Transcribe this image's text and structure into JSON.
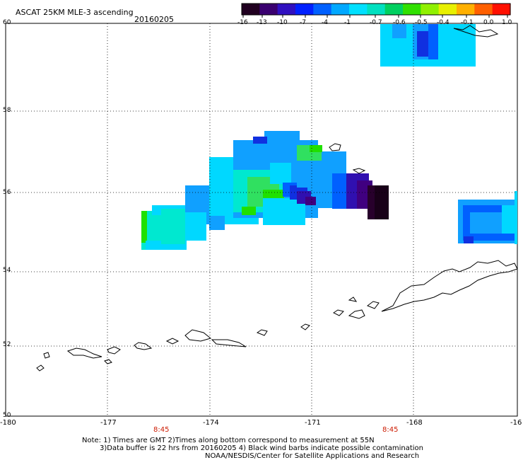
{
  "header": {
    "title": "ASCAT 25KM MLE-3 ascending",
    "date": "20160205"
  },
  "colorbar": {
    "labels": [
      "-16",
      "-13",
      "-10",
      "-7",
      "-4",
      "-1",
      "-0.7",
      "-0.6",
      "-0.5",
      "-0.4",
      "-0.1",
      "0.0",
      "1.0"
    ],
    "colors": [
      "#200020",
      "#3a0070",
      "#3010c0",
      "#0020ff",
      "#0060ff",
      "#00a8ff",
      "#00e0ff",
      "#00e0c0",
      "#00d060",
      "#30e000",
      "#90f000",
      "#e8f000",
      "#ffb000",
      "#ff6000",
      "#ff1000"
    ]
  },
  "axes": {
    "lat_labels": [
      "60",
      "58",
      "56",
      "54",
      "52",
      "50"
    ],
    "lon_labels": [
      "-180",
      "-177",
      "-174",
      "-171",
      "-168",
      "-16"
    ],
    "pass_times": [
      "8:45",
      "8:45"
    ]
  },
  "footer": {
    "line1": "Note: 1) Times are GMT 2)Times along bottom correspond to measurement at 55N",
    "line2": "3)Data buffer is 22 hrs from 20160205 4) Black wind barbs indicate possible contamination",
    "line3": "NOAA/NESDIS/Center for Satellite Applications and Research"
  }
}
